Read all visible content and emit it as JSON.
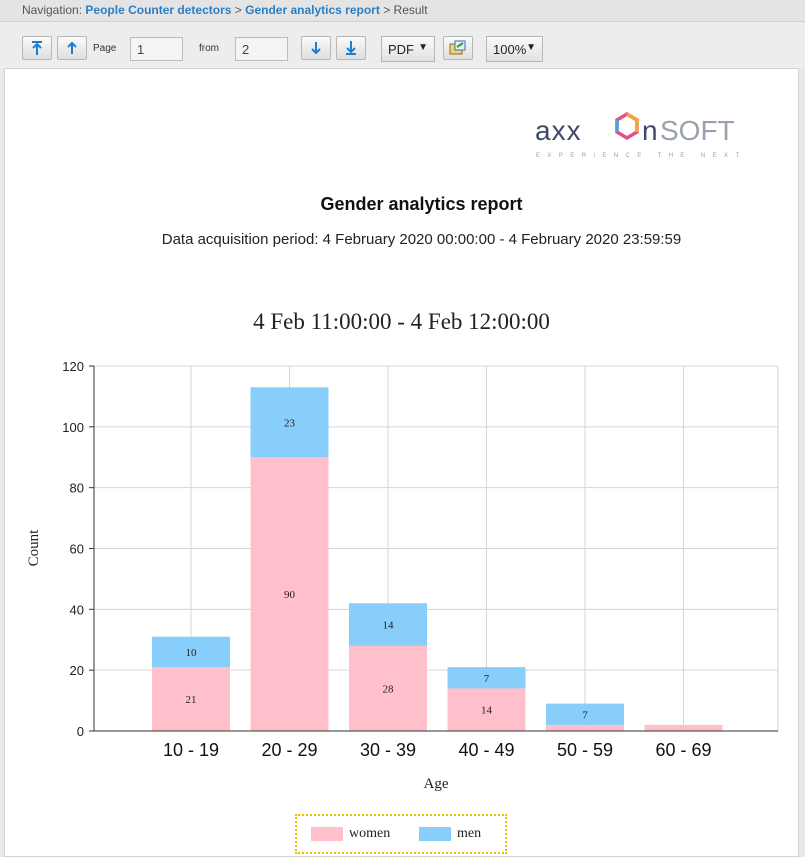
{
  "navigation": {
    "prefix": "Navigation:",
    "crumbs": [
      "People Counter detectors",
      "Gender analytics report",
      "Result"
    ],
    "separator": ">"
  },
  "toolbar": {
    "page_label": "Page",
    "page_value": "1",
    "from_label": "from",
    "total_pages": "2",
    "format": "PDF",
    "zoom": "100%",
    "icons": [
      "first-page-icon",
      "prev-page-icon",
      "next-page-icon",
      "last-page-icon",
      "export-icon"
    ]
  },
  "report": {
    "title": "Gender analytics report",
    "period": "Data acquisition period: 4 February 2020 00:00:00 - 4 February 2020 23:59:59"
  },
  "colors": {
    "women": "#ffc0cb",
    "men": "#87cefa",
    "link": "#2a7fc4",
    "legend_border": "#e6c200"
  },
  "chart_data": {
    "type": "bar",
    "stacked": true,
    "title": "4 Feb 11:00:00 - 4 Feb 12:00:00",
    "xlabel": "Age",
    "ylabel": "Count",
    "ylim": [
      0,
      120
    ],
    "yticks": [
      0,
      20,
      40,
      60,
      80,
      100,
      120
    ],
    "grid": true,
    "legend": "bottom-center",
    "categories": [
      "10 - 19",
      "20 - 29",
      "30 - 39",
      "40 - 49",
      "50 - 59",
      "60 - 69"
    ],
    "series": [
      {
        "name": "women",
        "values": [
          21,
          90,
          28,
          14,
          2,
          2
        ],
        "labels": [
          "21",
          "90",
          "28",
          "14",
          "",
          ""
        ]
      },
      {
        "name": "men",
        "values": [
          10,
          23,
          14,
          7,
          7,
          0
        ],
        "labels": [
          "10",
          "23",
          "14",
          "7",
          "7",
          ""
        ]
      }
    ]
  }
}
